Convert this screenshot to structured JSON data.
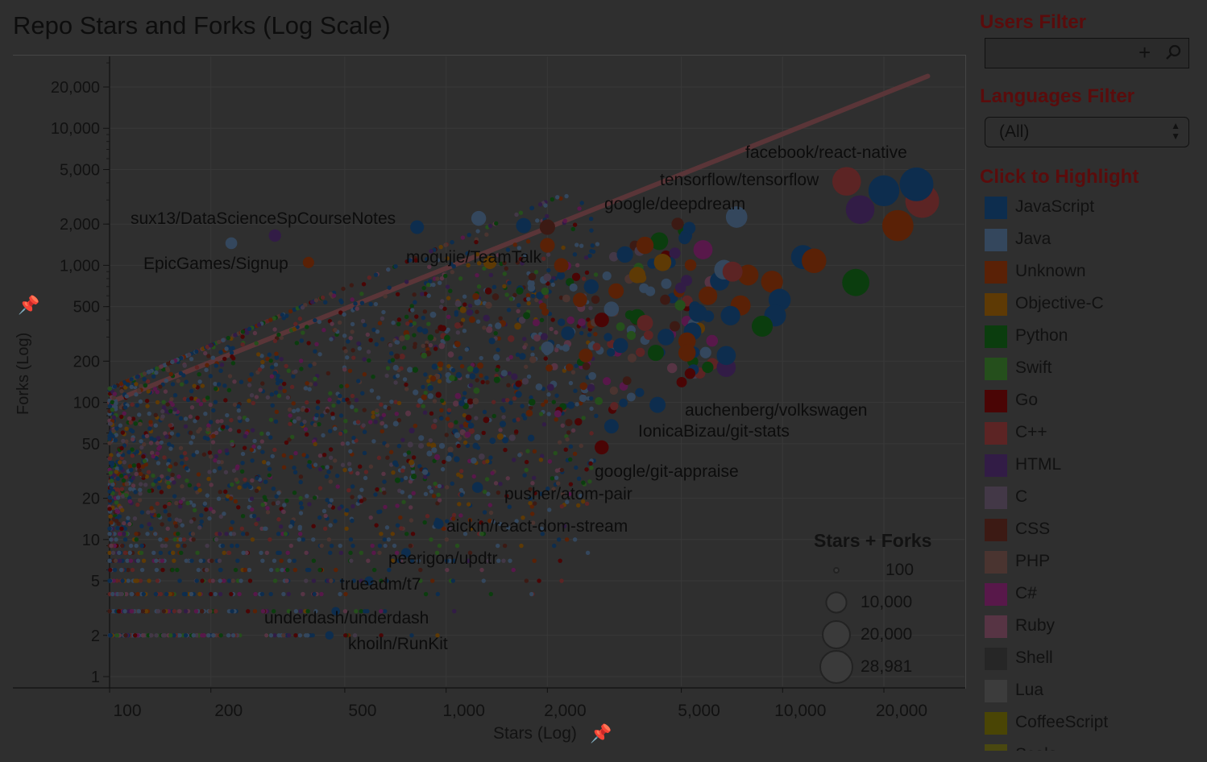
{
  "title": "Repo Stars and Forks (Log Scale)",
  "filters": {
    "users_label": "Users Filter",
    "users_value": "",
    "languages_label": "Languages Filter",
    "languages_value": "(All)",
    "highlight_label": "Click to Highlight",
    "icons": [
      "plus-icon",
      "search-icon",
      "select-arrows-icon",
      "pin-icon"
    ]
  },
  "legend": [
    {
      "name": "JavaScript",
      "color": "#0d2d4e"
    },
    {
      "name": "Java",
      "color": "#34475d"
    },
    {
      "name": "Unknown",
      "color": "#5a2106"
    },
    {
      "name": "Objective-C",
      "color": "#5e3a05"
    },
    {
      "name": "Python",
      "color": "#0b3d0e"
    },
    {
      "name": "Swift",
      "color": "#254f1c"
    },
    {
      "name": "Go",
      "color": "#4a0505"
    },
    {
      "name": "C++",
      "color": "#5c2424"
    },
    {
      "name": "HTML",
      "color": "#321c46"
    },
    {
      "name": "C",
      "color": "#433847"
    },
    {
      "name": "CSS",
      "color": "#3c1a14"
    },
    {
      "name": "PHP",
      "color": "#4a3430"
    },
    {
      "name": "C#",
      "color": "#58184a"
    },
    {
      "name": "Ruby",
      "color": "#573444"
    },
    {
      "name": "Shell",
      "color": "#262626"
    },
    {
      "name": "Lua",
      "color": "#3c3c3c"
    },
    {
      "name": "CoffeeScript",
      "color": "#4a4505"
    },
    {
      "name": "Scala",
      "color": "#4a4810"
    }
  ],
  "size_legend": {
    "title": "Stars + Forks",
    "values": [
      100,
      10000,
      20000,
      28981
    ],
    "labels": [
      "100",
      "10,000",
      "20,000",
      "28,981"
    ]
  },
  "chart_data": {
    "type": "scatter",
    "title": "Repo Stars and Forks (Log Scale)",
    "xlabel": "Stars (Log)",
    "ylabel": "Forks (Log)",
    "xscale": "log",
    "yscale": "log",
    "xlim": [
      90,
      33000
    ],
    "ylim": [
      1,
      33000
    ],
    "xticks": [
      100,
      200,
      500,
      1000,
      2000,
      5000,
      10000,
      20000
    ],
    "xtick_labels": [
      "100",
      "200",
      "500",
      "1,000",
      "2,000",
      "5,000",
      "10,000",
      "20,000"
    ],
    "yticks": [
      1,
      2,
      5,
      10,
      20,
      50,
      100,
      200,
      500,
      1000,
      2000,
      5000,
      10000,
      20000
    ],
    "ytick_labels": [
      "1",
      "2",
      "5",
      "10",
      "20",
      "50",
      "100",
      "200",
      "500",
      "1,000",
      "2,000",
      "5,000",
      "10,000",
      "20,000"
    ],
    "trend_line": {
      "from": [
        100,
        100
      ],
      "to": [
        27000,
        24000
      ]
    },
    "labeled_points": [
      {
        "label": "facebook/react-native",
        "x": 25000,
        "y": 3900,
        "lang": "JavaScript"
      },
      {
        "label": "tensorflow/tensorflow",
        "x": 15500,
        "y": 4100,
        "lang": "C++"
      },
      {
        "label": "google/deepdream",
        "x": 7300,
        "y": 2250,
        "lang": "Java"
      },
      {
        "label": "sux13/DataScienceSpCourseNotes",
        "x": 310,
        "y": 1650,
        "lang": "HTML"
      },
      {
        "label": "EpicGames/Signup",
        "x": 390,
        "y": 1050,
        "lang": "Unknown"
      },
      {
        "label": "mogujie/TeamTalk",
        "x": 1350,
        "y": 1050,
        "lang": "Objective-C"
      },
      {
        "label": "auchenberg/volkswagen",
        "x": 4250,
        "y": 96,
        "lang": "JavaScript"
      },
      {
        "label": "IonicaBizau/git-stats",
        "x": 3100,
        "y": 67,
        "lang": "JavaScript"
      },
      {
        "label": "google/git-appraise",
        "x": 2900,
        "y": 47,
        "lang": "Go"
      },
      {
        "label": "pusher/atom-pair",
        "x": 1240,
        "y": 24,
        "lang": "JavaScript"
      },
      {
        "label": "aickin/react-dom-stream",
        "x": 950,
        "y": 13,
        "lang": "JavaScript"
      },
      {
        "label": "peerigon/updtr",
        "x": 760,
        "y": 8,
        "lang": "JavaScript"
      },
      {
        "label": "trueadm/t7",
        "x": 590,
        "y": 5,
        "lang": "JavaScript"
      },
      {
        "label": "underdash/underdash",
        "x": 470,
        "y": 3,
        "lang": "JavaScript"
      },
      {
        "label": "khoiln/RunKit",
        "x": 450,
        "y": 2,
        "lang": "JavaScript"
      }
    ],
    "points": [
      {
        "x": 26000,
        "y": 2950,
        "lang": "C++"
      },
      {
        "x": 20000,
        "y": 3500,
        "lang": "JavaScript"
      },
      {
        "x": 17000,
        "y": 2550,
        "lang": "HTML"
      },
      {
        "x": 22000,
        "y": 1950,
        "lang": "Unknown"
      },
      {
        "x": 16500,
        "y": 750,
        "lang": "Python"
      },
      {
        "x": 11500,
        "y": 1150,
        "lang": "JavaScript"
      },
      {
        "x": 12400,
        "y": 1080,
        "lang": "Unknown"
      },
      {
        "x": 9300,
        "y": 760,
        "lang": "Unknown"
      },
      {
        "x": 7900,
        "y": 850,
        "lang": "Unknown"
      },
      {
        "x": 9800,
        "y": 560,
        "lang": "JavaScript"
      },
      {
        "x": 9500,
        "y": 430,
        "lang": "JavaScript"
      },
      {
        "x": 8700,
        "y": 360,
        "lang": "Python"
      },
      {
        "x": 7500,
        "y": 510,
        "lang": "Unknown"
      },
      {
        "x": 6500,
        "y": 770,
        "lang": "JavaScript"
      },
      {
        "x": 6700,
        "y": 930,
        "lang": "Java"
      },
      {
        "x": 7100,
        "y": 900,
        "lang": "C++"
      },
      {
        "x": 6000,
        "y": 600,
        "lang": "Unknown"
      },
      {
        "x": 5600,
        "y": 450,
        "lang": "JavaScript"
      },
      {
        "x": 7000,
        "y": 430,
        "lang": "JavaScript"
      },
      {
        "x": 5400,
        "y": 330,
        "lang": "JavaScript"
      },
      {
        "x": 5200,
        "y": 280,
        "lang": "Unknown"
      },
      {
        "x": 6800,
        "y": 180,
        "lang": "HTML"
      },
      {
        "x": 6800,
        "y": 220,
        "lang": "JavaScript"
      },
      {
        "x": 5200,
        "y": 230,
        "lang": "Unknown"
      },
      {
        "x": 4500,
        "y": 300,
        "lang": "JavaScript"
      },
      {
        "x": 4200,
        "y": 230,
        "lang": "Python"
      },
      {
        "x": 4400,
        "y": 1050,
        "lang": "Objective-C"
      },
      {
        "x": 4300,
        "y": 1500,
        "lang": "Python"
      },
      {
        "x": 3900,
        "y": 1400,
        "lang": "Unknown"
      },
      {
        "x": 5800,
        "y": 1300,
        "lang": "C#"
      },
      {
        "x": 3400,
        "y": 1200,
        "lang": "JavaScript"
      },
      {
        "x": 2000,
        "y": 1400,
        "lang": "Unknown"
      },
      {
        "x": 2200,
        "y": 1000,
        "lang": "Unknown"
      },
      {
        "x": 1250,
        "y": 2200,
        "lang": "Java"
      },
      {
        "x": 820,
        "y": 1900,
        "lang": "JavaScript"
      },
      {
        "x": 1700,
        "y": 1950,
        "lang": "JavaScript"
      },
      {
        "x": 2000,
        "y": 1900,
        "lang": "CSS"
      },
      {
        "x": 230,
        "y": 1450,
        "lang": "Java"
      },
      {
        "x": 3700,
        "y": 850,
        "lang": "Objective-C"
      },
      {
        "x": 3200,
        "y": 650,
        "lang": "Unknown"
      },
      {
        "x": 2700,
        "y": 700,
        "lang": "JavaScript"
      },
      {
        "x": 2500,
        "y": 560,
        "lang": "Unknown"
      },
      {
        "x": 3100,
        "y": 480,
        "lang": "Java"
      },
      {
        "x": 3700,
        "y": 420,
        "lang": "Python"
      },
      {
        "x": 2900,
        "y": 400,
        "lang": "Go"
      },
      {
        "x": 3900,
        "y": 380,
        "lang": "C++"
      },
      {
        "x": 2300,
        "y": 320,
        "lang": "JavaScript"
      },
      {
        "x": 3300,
        "y": 260,
        "lang": "JavaScript"
      },
      {
        "x": 2600,
        "y": 220,
        "lang": "Unknown"
      },
      {
        "x": 2000,
        "y": 250,
        "lang": "Java"
      }
    ],
    "cloud": "thousands of small points concentrated at stars 100-2000, forks 2-200, mostly JavaScript and Java"
  }
}
